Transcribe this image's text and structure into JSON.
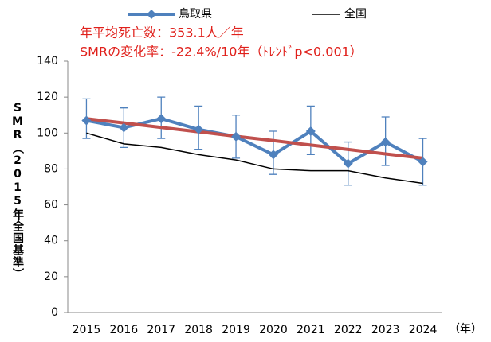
{
  "chart_data": {
    "type": "line",
    "annotations": [
      "年平均死亡数：353.1人／年",
      "SMRの変化率：-22.4%/10年（ﾄﾚﾝﾄﾞp<0.001）"
    ],
    "y_label": "SMR（2015年全国基準）",
    "x_label": "（年）",
    "categories": [
      "2015",
      "2016",
      "2017",
      "2018",
      "2019",
      "2020",
      "2021",
      "2022",
      "2023",
      "2024"
    ],
    "series": [
      {
        "name": "鳥取県",
        "color": "#4f81bd",
        "values": [
          107,
          103,
          108,
          102,
          98,
          88,
          101,
          83,
          95,
          84
        ],
        "ci_low": [
          97,
          92,
          97,
          91,
          86,
          77,
          88,
          71,
          82,
          71
        ],
        "ci_high": [
          119,
          114,
          120,
          115,
          110,
          101,
          115,
          95,
          109,
          97
        ]
      },
      {
        "name": "全国",
        "color": "#000000",
        "values": [
          100,
          94,
          92,
          88,
          85,
          80,
          79,
          79,
          75,
          72
        ]
      }
    ],
    "trend": {
      "color": "#c0504d",
      "values": [
        108,
        105.6,
        103.1,
        100.7,
        98.2,
        95.8,
        93.3,
        90.9,
        88.4,
        86
      ]
    },
    "ylim": [
      0,
      140
    ],
    "yticks": [
      0,
      20,
      40,
      60,
      80,
      100,
      120,
      140
    ],
    "grid": false
  }
}
